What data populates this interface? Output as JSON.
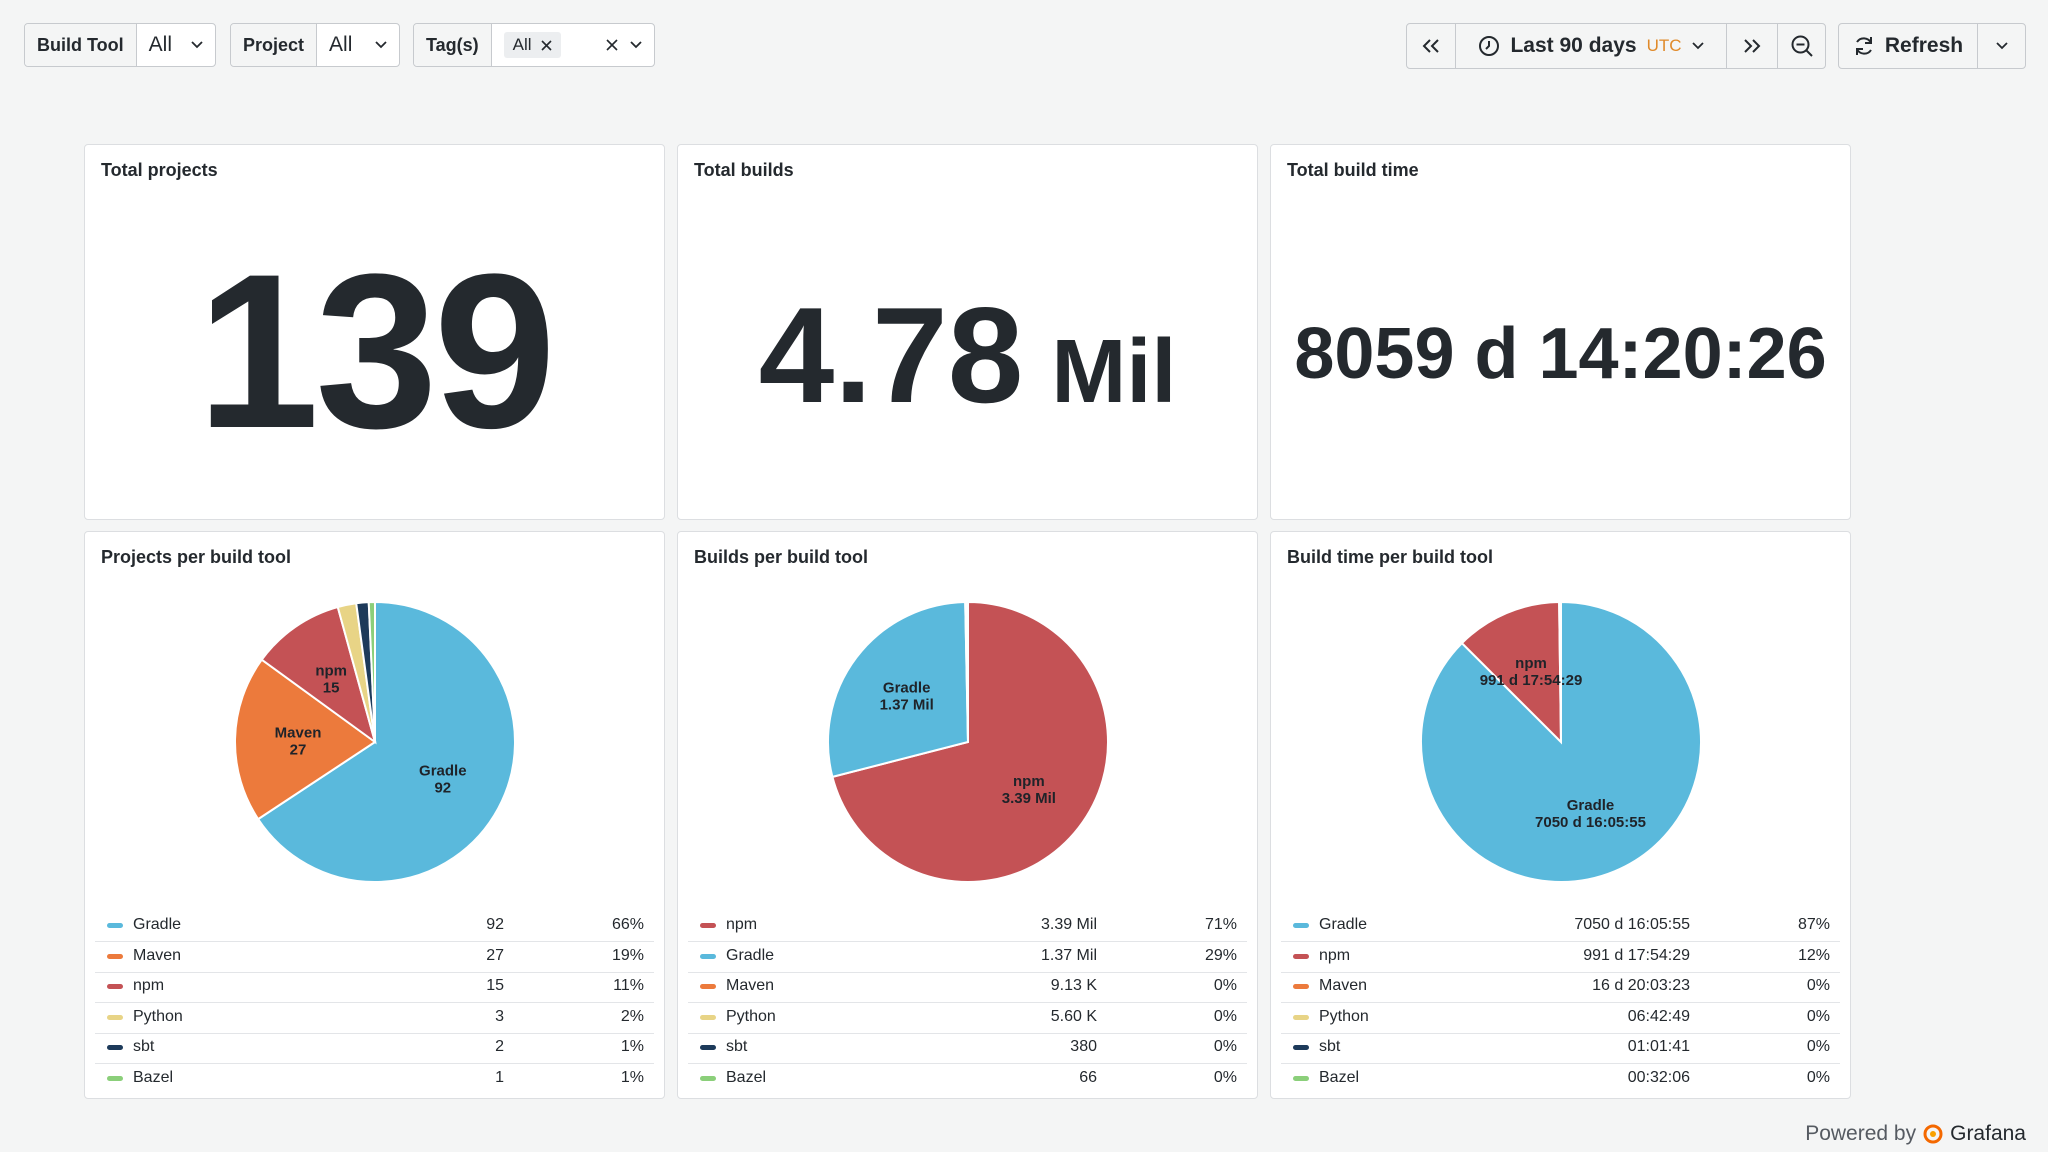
{
  "filters": {
    "build_tool": {
      "label": "Build Tool",
      "value": "All"
    },
    "project": {
      "label": "Project",
      "value": "All"
    },
    "tags": {
      "label": "Tag(s)",
      "chip": "All"
    }
  },
  "time": {
    "range": "Last 90 days",
    "tz": "UTC"
  },
  "refresh": {
    "label": "Refresh"
  },
  "stats": {
    "total_projects": {
      "title": "Total projects",
      "value": "139"
    },
    "total_builds": {
      "title": "Total builds",
      "value": "4.78",
      "unit": "Mil"
    },
    "total_build_time": {
      "title": "Total build time",
      "value": "8059 d 14:20:26"
    }
  },
  "colors": {
    "Gradle": "#5ab9dc",
    "Maven": "#ec7a3c",
    "npm": "#c45255",
    "Python": "#e8d486",
    "sbt": "#1d3a5a",
    "Bazel": "#8bcf7a"
  },
  "pies": [
    {
      "title": "Projects per build tool",
      "chart_data": {
        "type": "pie",
        "slices": [
          {
            "name": "Gradle",
            "value": 92,
            "label": "92",
            "pct": "66%"
          },
          {
            "name": "Maven",
            "value": 27,
            "label": "27",
            "pct": "19%"
          },
          {
            "name": "npm",
            "value": 15,
            "label": "15",
            "pct": "11%"
          },
          {
            "name": "Python",
            "value": 3,
            "label": "3",
            "pct": "2%"
          },
          {
            "name": "sbt",
            "value": 2,
            "label": "2",
            "pct": "1%"
          },
          {
            "name": "Bazel",
            "value": 1,
            "label": "1",
            "pct": "1%"
          }
        ],
        "shown_on_pie": [
          "Gradle",
          "Maven",
          "npm"
        ]
      }
    },
    {
      "title": "Builds per build tool",
      "chart_data": {
        "type": "pie",
        "slices": [
          {
            "name": "npm",
            "value": 3390000,
            "label": "3.39 Mil",
            "pct": "71%"
          },
          {
            "name": "Gradle",
            "value": 1370000,
            "label": "1.37 Mil",
            "pct": "29%"
          },
          {
            "name": "Maven",
            "value": 9130,
            "label": "9.13 K",
            "pct": "0%"
          },
          {
            "name": "Python",
            "value": 5600,
            "label": "5.60 K",
            "pct": "0%"
          },
          {
            "name": "sbt",
            "value": 380,
            "label": "380",
            "pct": "0%"
          },
          {
            "name": "Bazel",
            "value": 66,
            "label": "66",
            "pct": "0%"
          }
        ],
        "shown_on_pie": [
          "npm",
          "Gradle"
        ]
      }
    },
    {
      "title": "Build time per build tool",
      "chart_data": {
        "type": "pie",
        "slices": [
          {
            "name": "Gradle",
            "value": 7050.67,
            "label": "7050 d 16:05:55",
            "pct": "87%"
          },
          {
            "name": "npm",
            "value": 991.75,
            "label": "991 d 17:54:29",
            "pct": "12%"
          },
          {
            "name": "Maven",
            "value": 16.84,
            "label": "16 d 20:03:23",
            "pct": "0%"
          },
          {
            "name": "Python",
            "value": 0.28,
            "label": "06:42:49",
            "pct": "0%"
          },
          {
            "name": "sbt",
            "value": 0.04,
            "label": "01:01:41",
            "pct": "0%"
          },
          {
            "name": "Bazel",
            "value": 0.02,
            "label": "00:32:06",
            "pct": "0%"
          }
        ],
        "shown_on_pie": [
          "Gradle",
          "npm"
        ]
      }
    }
  ],
  "footer": {
    "powered": "Powered by",
    "brand": "Grafana"
  }
}
